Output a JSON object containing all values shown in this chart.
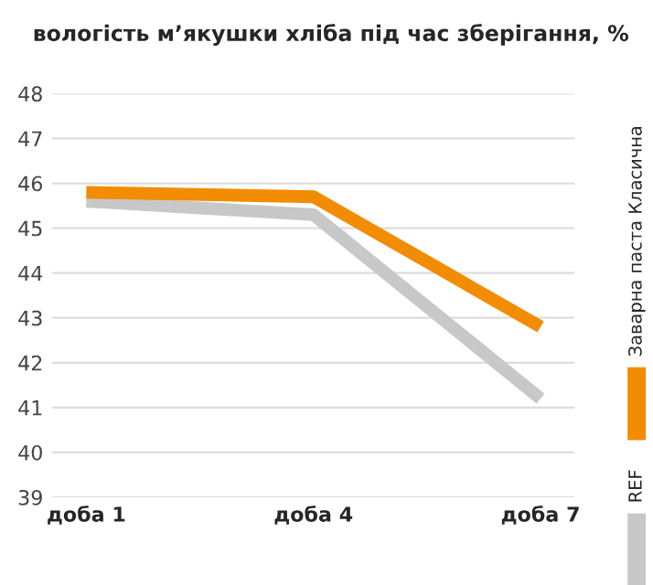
{
  "chart_data": {
    "type": "line",
    "title": "вологість м’якушки хліба під час зберігання, %",
    "categories": [
      "доба 1",
      "доба 4",
      "доба 7"
    ],
    "series": [
      {
        "name": "REF",
        "color": "#c8c8c8",
        "values": [
          45.6,
          45.3,
          41.2
        ]
      },
      {
        "name": "Заварна паста Класична",
        "color": "#f28c00",
        "values": [
          45.8,
          45.7,
          42.8
        ]
      }
    ],
    "ylim": [
      39,
      48
    ],
    "yticks": [
      39,
      40,
      41,
      42,
      43,
      44,
      45,
      46,
      47,
      48
    ],
    "grid": "y",
    "legend": "right",
    "line_style": "solid",
    "marker": "none"
  }
}
